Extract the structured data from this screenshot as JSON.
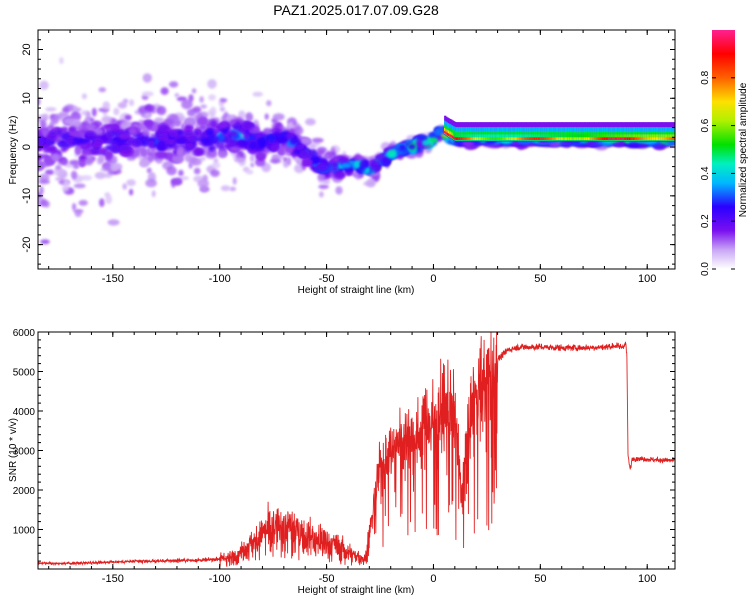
{
  "title": "PAZ1.2025.017.07.09.G28",
  "colors": {
    "snr_line": "#e02020",
    "frame": "#000000"
  },
  "colorbar": {
    "label": "Normalized spectral amplitude",
    "ticks": [
      "0.0",
      "0.2",
      "0.4",
      "0.6",
      "0.8"
    ],
    "tick_values": [
      0,
      0.2,
      0.4,
      0.6,
      0.8
    ],
    "range": [
      0,
      1
    ],
    "colormap": "rainbow (white-violet-blue-cyan-green-yellow-red-magenta)"
  },
  "chart_data": [
    {
      "type": "heatmap",
      "title": "PAZ1.2025.017.07.09.G28",
      "xlabel": "Height of straight line (km)",
      "ylabel": "Frequency (Hz)",
      "xlim": [
        -185,
        113
      ],
      "ylim": [
        -25,
        24
      ],
      "xticks": [
        -150,
        -100,
        -50,
        0,
        50,
        100
      ],
      "yticks": [
        -20,
        -10,
        0,
        10,
        20
      ],
      "xtick_labels": [
        "-150",
        "-100",
        "-50",
        "0",
        "50",
        "100"
      ],
      "ytick_labels": [
        "-20",
        "-10",
        "0",
        "10",
        "20"
      ],
      "ridge": {
        "x": [
          -185,
          -150,
          -120,
          -100,
          -90,
          -80,
          -70,
          -60,
          -55,
          -50,
          -45,
          -40,
          -35,
          -30,
          -25,
          -20,
          -15,
          -10,
          -5,
          0,
          3,
          6,
          10,
          20,
          40,
          60,
          80,
          100,
          113
        ],
        "y": [
          1,
          1,
          1.5,
          2,
          2.5,
          1,
          2,
          -1,
          -3,
          -4.5,
          -4,
          -4,
          -3.5,
          -5,
          -3,
          -1.5,
          -0.5,
          0,
          1,
          1.5,
          3.5,
          2.5,
          1.5,
          1.5,
          1.5,
          1.5,
          1.5,
          1.5,
          1.5
        ],
        "amplitude": [
          0.25,
          0.28,
          0.3,
          0.35,
          0.45,
          0.35,
          0.35,
          0.35,
          0.4,
          0.45,
          0.45,
          0.5,
          0.5,
          0.45,
          0.5,
          0.55,
          0.6,
          0.7,
          0.8,
          0.85,
          0.6,
          0.75,
          0.5,
          0.45,
          0.45,
          0.5,
          0.55,
          0.6,
          0.6
        ]
      },
      "spread_hz": {
        "x": [
          -185,
          -100,
          -60,
          -40,
          -20,
          0,
          10,
          113
        ],
        "y": [
          22,
          14,
          8,
          5,
          3,
          2,
          1.2,
          1.2
        ]
      }
    },
    {
      "type": "line",
      "xlabel": "Height of straight line (km)",
      "ylabel": "SNR (10 * v/v)",
      "xlim": [
        -185,
        113
      ],
      "ylim": [
        0,
        6000
      ],
      "xticks": [
        -150,
        -100,
        -50,
        0,
        50,
        100
      ],
      "yticks": [
        1000,
        2000,
        3000,
        4000,
        5000,
        6000
      ],
      "xtick_labels": [
        "-150",
        "-100",
        "-50",
        "0",
        "50",
        "100"
      ],
      "ytick_labels": [
        "1000",
        "2000",
        "3000",
        "4000",
        "5000",
        "6000"
      ],
      "series": [
        {
          "color": "#e02020",
          "x": [
            -185,
            -170,
            -150,
            -130,
            -115,
            -105,
            -100,
            -95,
            -90,
            -85,
            -80,
            -75,
            -70,
            -65,
            -60,
            -55,
            -50,
            -45,
            -40,
            -37,
            -34,
            -32,
            -30,
            -28,
            -26,
            -24,
            -22,
            -20,
            -18,
            -15,
            -12,
            -10,
            -8,
            -6,
            -4,
            -2,
            0,
            2,
            5,
            8,
            10,
            12,
            13,
            15,
            18,
            20,
            22,
            25,
            28,
            30,
            35,
            40,
            50,
            60,
            70,
            80,
            85,
            88,
            90,
            90.5,
            91,
            92,
            93,
            95,
            100,
            105,
            110,
            113
          ],
          "y": [
            150,
            140,
            180,
            200,
            220,
            230,
            260,
            300,
            450,
            650,
            900,
            1050,
            1100,
            1000,
            850,
            800,
            700,
            600,
            450,
            350,
            300,
            250,
            900,
            1600,
            2300,
            2600,
            2800,
            3000,
            3150,
            3300,
            3450,
            3400,
            3300,
            3500,
            3800,
            3700,
            3700,
            3900,
            4000,
            4100,
            4000,
            2600,
            1800,
            3000,
            4100,
            4400,
            4600,
            4800,
            5050,
            5300,
            5550,
            5620,
            5620,
            5600,
            5600,
            5620,
            5650,
            5620,
            5700,
            5400,
            2900,
            2500,
            2800,
            2800,
            2780,
            2760,
            2750,
            2750
          ]
        }
      ]
    }
  ]
}
